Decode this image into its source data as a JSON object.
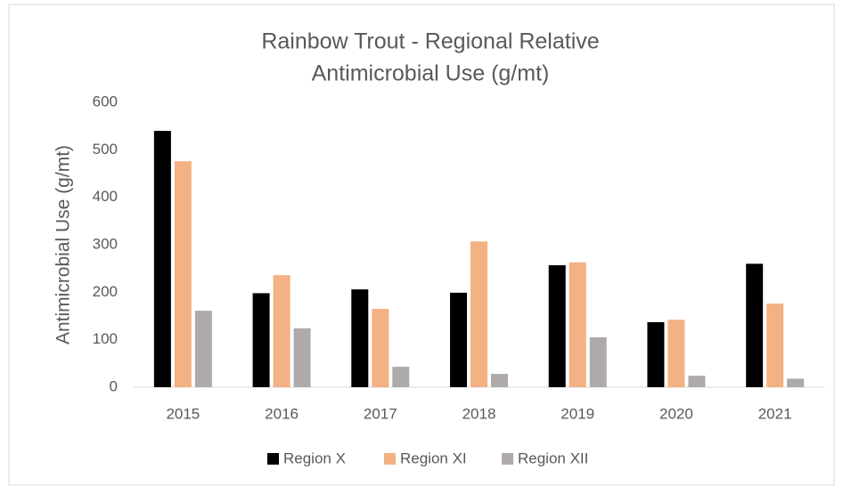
{
  "chart_data": {
    "type": "bar",
    "title": [
      "Rainbow Trout - Regional Relative",
      "Antimicrobial Use (g/mt)"
    ],
    "y_label": "Antimicrobial Use (g/mt)",
    "categories": [
      "2015",
      "2016",
      "2017",
      "2018",
      "2019",
      "2020",
      "2021"
    ],
    "series": [
      {
        "name": "Region X",
        "color": "#000000",
        "values": [
          540,
          198,
          206,
          199,
          257,
          137,
          260
        ]
      },
      {
        "name": "Region XI",
        "color": "#f4b183",
        "values": [
          476,
          236,
          165,
          307,
          263,
          142,
          176
        ]
      },
      {
        "name": "Region XII",
        "color": "#aeaaaa",
        "values": [
          161,
          124,
          43,
          28,
          105,
          24,
          18
        ]
      }
    ],
    "ylim": [
      0,
      600
    ],
    "yticks": [
      0,
      100,
      200,
      300,
      400,
      500,
      600
    ],
    "grid": false,
    "legend": "bottom"
  }
}
